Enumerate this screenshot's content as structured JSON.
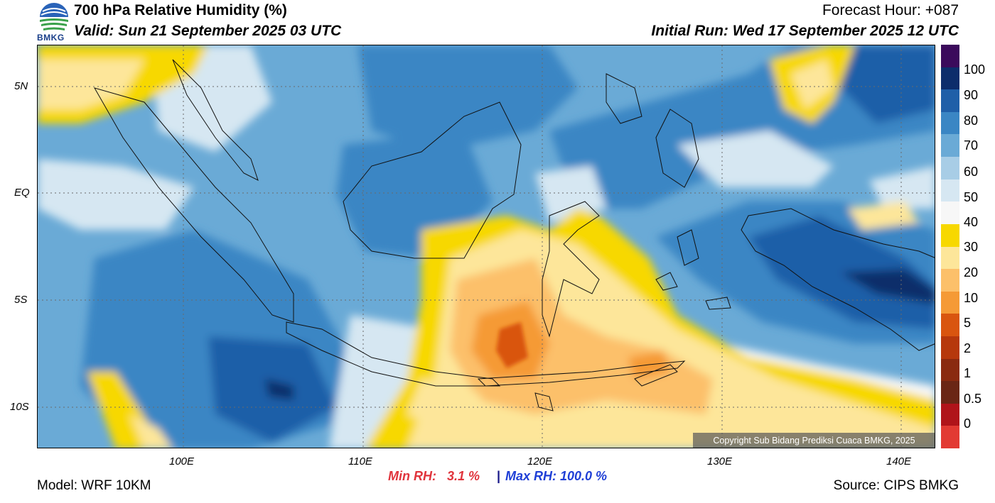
{
  "header": {
    "title": "700 hPa Relative Humidity (%)",
    "valid": "Valid: Sun 21 September 2025 03 UTC",
    "forecast_hour": "Forecast Hour: +087",
    "initial_run": "Initial Run: Wed 17 September 2025 12 UTC",
    "logo_text": "BMKG"
  },
  "map": {
    "lat_labels": [
      "5N",
      "EQ",
      "5S",
      "10S"
    ],
    "lon_labels": [
      "100E",
      "110E",
      "120E",
      "130E",
      "140E"
    ],
    "copyright": "Copyright Sub Bidang Prediksi Cuaca BMKG, 2025"
  },
  "colorbar": {
    "labels": [
      "100",
      "90",
      "80",
      "70",
      "60",
      "50",
      "40",
      "30",
      "20",
      "10",
      "5",
      "2",
      "1",
      "0.5",
      "0"
    ],
    "colors": [
      "#3b0a5c",
      "#0d2d6b",
      "#1f5fa8",
      "#3a86c4",
      "#6aaad6",
      "#a8cde6",
      "#d6e7f2",
      "#f7f7f7",
      "#f7d800",
      "#fde69a",
      "#fcc06a",
      "#f59a36",
      "#d9550f",
      "#b6380c",
      "#8a2a10",
      "#6a2615",
      "#b0141a",
      "#e23a33"
    ]
  },
  "footer": {
    "model": "Model: WRF 10KM",
    "min_label": "Min RH:",
    "min_value": "3.1 %",
    "separator": "|",
    "max_label": "Max RH: 100.0 %",
    "source": "Source: CIPS BMKG"
  }
}
